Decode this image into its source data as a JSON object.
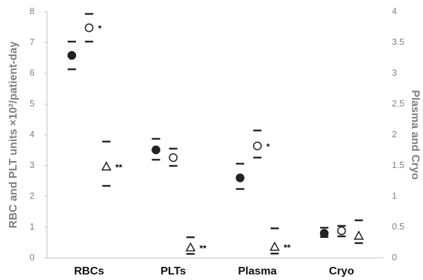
{
  "chart_data": {
    "type": "dot-range",
    "y_label": "RBC and PLT units ×10²/patient-day",
    "y2_label": "Plasma and Cryo",
    "categories": [
      "RBCs",
      "PLTs",
      "Plasma",
      "Cryo"
    ],
    "ylim": [
      0,
      8
    ],
    "yticks": [
      0,
      1,
      2,
      3,
      4,
      5,
      6,
      7,
      8
    ],
    "y2lim": [
      0,
      4
    ],
    "y2ticks": [
      0,
      0.5,
      1,
      1.5,
      2,
      2.5,
      3,
      3.5,
      4
    ],
    "series": [
      {
        "marker": "circle",
        "filled": true,
        "color": "#222222",
        "axis": "y",
        "values": [
          6.58,
          3.51,
          null,
          null
        ],
        "lower": [
          6.13,
          3.19,
          null,
          null
        ],
        "upper": [
          7.03,
          3.87,
          null,
          null
        ],
        "annotations": [
          null,
          null,
          null,
          null
        ]
      },
      {
        "marker": "circle",
        "filled": false,
        "color": "#222222",
        "axis": "y",
        "values": [
          7.48,
          3.26,
          null,
          null
        ],
        "lower": [
          7.03,
          2.99,
          null,
          null
        ],
        "upper": [
          7.93,
          3.55,
          null,
          null
        ],
        "annotations": [
          "*",
          null,
          null,
          null
        ]
      },
      {
        "marker": "triangle",
        "filled": false,
        "color": "#222222",
        "axis": "y",
        "values": [
          2.97,
          0.34,
          null,
          null
        ],
        "lower": [
          2.34,
          0.13,
          null,
          null
        ],
        "upper": [
          3.78,
          0.67,
          null,
          null
        ],
        "annotations": [
          "**",
          "**",
          null,
          null
        ]
      },
      {
        "marker": "circle",
        "filled": true,
        "color": "#222222",
        "axis": "y2",
        "values": [
          null,
          null,
          1.3,
          0.4
        ],
        "lower": [
          null,
          null,
          1.12,
          0.34
        ],
        "upper": [
          null,
          null,
          1.53,
          0.49
        ],
        "annotations": [
          null,
          null,
          null,
          null
        ]
      },
      {
        "marker": "circle",
        "filled": false,
        "color": "#222222",
        "axis": "y2",
        "values": [
          null,
          null,
          1.82,
          0.44
        ],
        "lower": [
          null,
          null,
          1.63,
          0.35
        ],
        "upper": [
          null,
          null,
          2.07,
          0.52
        ],
        "annotations": [
          null,
          null,
          "*",
          null
        ]
      },
      {
        "marker": "triangle",
        "filled": false,
        "color": "#222222",
        "axis": "y2",
        "values": [
          null,
          null,
          0.18,
          0.36
        ],
        "lower": [
          null,
          null,
          0.07,
          0.24
        ],
        "upper": [
          null,
          null,
          0.48,
          0.61
        ],
        "annotations": [
          null,
          null,
          "**",
          null
        ]
      }
    ]
  }
}
